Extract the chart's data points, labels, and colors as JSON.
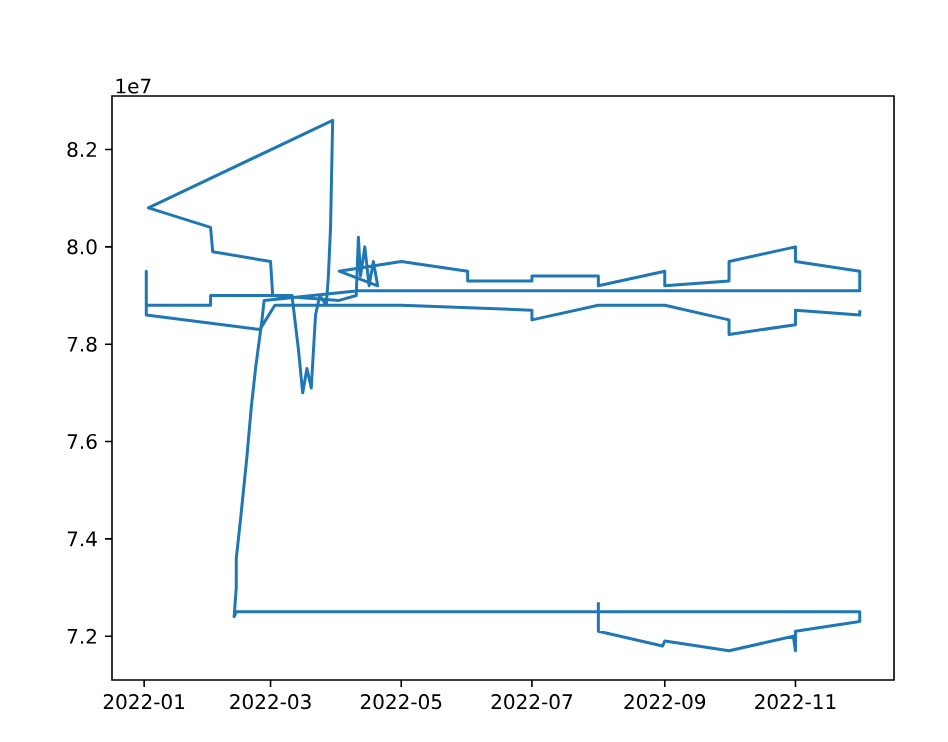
{
  "chart_data": {
    "type": "line",
    "annotations": [
      "1e7"
    ],
    "color": "#1f77b4",
    "marker": "none",
    "line_style": "solid",
    "grid": false,
    "xlim": [
      "2021-12-17",
      "2022-12-17"
    ],
    "ylim": [
      7.11,
      8.31
    ],
    "xticks": [
      "2022-01",
      "2022-03",
      "2022-05",
      "2022-07",
      "2022-09",
      "2022-11"
    ],
    "yticks": [
      7.2,
      7.4,
      7.6,
      7.8,
      {
        "value": 8.0,
        "label": "8.0"
      },
      8.2
    ],
    "x": [
      "2022-12-01",
      "2022-12-01",
      "2022-11-01",
      "2022-11-01",
      "2022-10-01",
      "2022-10-01",
      "2022-09-01",
      "2022-08-01",
      "2022-07-01",
      "2022-07-01",
      "2022-05-01",
      "2022-03-03",
      "2022-02-24",
      "2022-01-02",
      "2022-01-02",
      "2022-01-02",
      "2022-02-01",
      "2022-02-01",
      "2022-03-01",
      "2022-03-11",
      "2022-03-14",
      "2022-03-16",
      "2022-03-18",
      "2022-03-20",
      "2022-03-22",
      "2022-03-24",
      "2022-03-27",
      "2022-03-28",
      "2022-03-29",
      "2022-03-30",
      "2022-01-03",
      "2022-02-01",
      "2022-02-02",
      "2022-03-01",
      "2022-03-02",
      "2022-04-02",
      "2022-04-10",
      "2022-04-11",
      "2022-04-12",
      "2022-04-14",
      "2022-04-16",
      "2022-04-18",
      "2022-04-20",
      "2022-04-02",
      "2022-05-01",
      "2022-06-01",
      "2022-06-01",
      "2022-07-01",
      "2022-07-01",
      "2022-08-01",
      "2022-08-01",
      "2022-09-01",
      "2022-09-01",
      "2022-10-01",
      "2022-10-01",
      "2022-11-01",
      "2022-11-01",
      "2022-12-01",
      "2022-12-01",
      "2022-04-11",
      "2022-02-26",
      "2022-02-25",
      "2022-02-22",
      "2022-02-20",
      "2022-02-18",
      "2022-02-15",
      "2022-02-13",
      "2022-02-13",
      "2022-02-12",
      "2022-02-13",
      "2022-12-01",
      "2022-12-01",
      "2022-11-01",
      "2022-11-01",
      "2022-10-31",
      "2022-10-01",
      "2022-09-01",
      "2022-08-31",
      "2022-08-01",
      "2022-08-01"
    ],
    "values": [
      7.87,
      7.86,
      7.87,
      7.84,
      7.82,
      7.85,
      7.88,
      7.88,
      7.85,
      7.87,
      7.88,
      7.88,
      7.83,
      7.86,
      7.95,
      7.88,
      7.88,
      7.9,
      7.9,
      7.9,
      7.79,
      7.7,
      7.75,
      7.71,
      7.86,
      7.9,
      7.88,
      7.94,
      8.04,
      8.26,
      8.08,
      8.04,
      7.99,
      7.97,
      7.9,
      7.89,
      7.9,
      8.02,
      7.94,
      8.0,
      7.92,
      7.97,
      7.92,
      7.95,
      7.97,
      7.95,
      7.93,
      7.93,
      7.94,
      7.94,
      7.92,
      7.95,
      7.92,
      7.93,
      7.97,
      8.0,
      7.97,
      7.95,
      7.91,
      7.91,
      7.89,
      7.85,
      7.75,
      7.67,
      7.57,
      7.44,
      7.36,
      7.3,
      7.24,
      7.25,
      7.25,
      7.23,
      7.21,
      7.17,
      7.2,
      7.17,
      7.19,
      7.18,
      7.21,
      7.27
    ]
  }
}
